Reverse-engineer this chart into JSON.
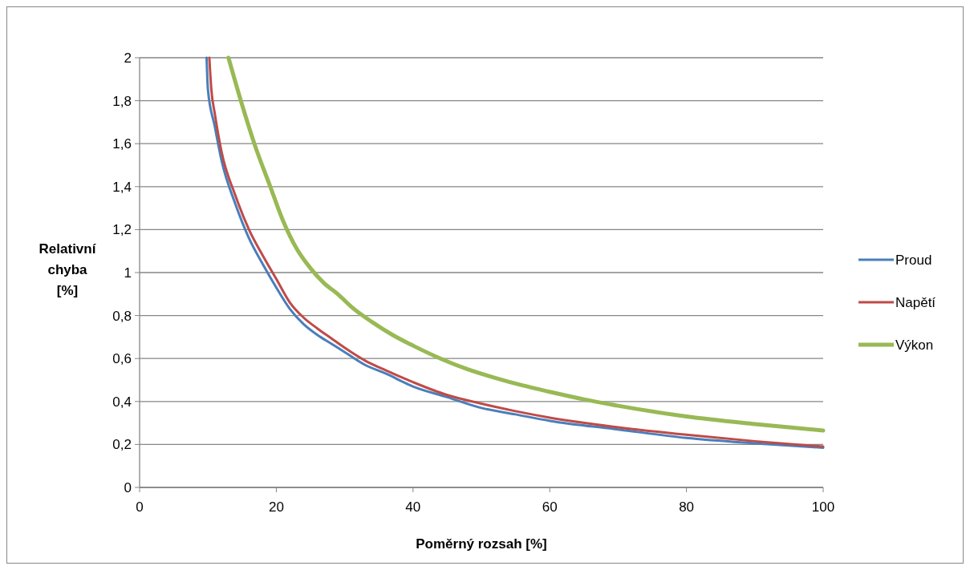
{
  "chart_data": {
    "type": "line",
    "xlabel": "Poměrný rozsah [%]",
    "ylabel": "Relativní chyba [%]",
    "xlim": [
      0,
      100
    ],
    "xticks": [
      0,
      20,
      40,
      60,
      80,
      100
    ],
    "ylim": [
      0,
      2
    ],
    "yticks": [
      0,
      {
        "value": 0.2,
        "label": "0,2"
      },
      {
        "value": 0.4,
        "label": "0,4"
      },
      {
        "value": 0.6,
        "label": "0,6"
      },
      {
        "value": 0.8,
        "label": "0,8"
      },
      1,
      {
        "value": 1.2,
        "label": "1,2"
      },
      {
        "value": 1.4,
        "label": "1,4"
      },
      {
        "value": 1.6,
        "label": "1,6"
      },
      {
        "value": 1.8,
        "label": "1,8"
      },
      2
    ],
    "grid": "y",
    "legend": "right",
    "marker": "none",
    "line_style": "solid",
    "series": [
      {
        "name": "Proud",
        "color": "#4a7ebb",
        "x": [
          9.8,
          10,
          11,
          12,
          14,
          16,
          18,
          20,
          22,
          24,
          26,
          28,
          30,
          33,
          36,
          40,
          45,
          50,
          55,
          60,
          70,
          80,
          90,
          100
        ],
        "values": [
          2.0,
          1.85,
          1.68,
          1.52,
          1.32,
          1.16,
          1.04,
          0.93,
          0.83,
          0.76,
          0.71,
          0.67,
          0.63,
          0.57,
          0.53,
          0.47,
          0.42,
          0.37,
          0.34,
          0.31,
          0.27,
          0.23,
          0.205,
          0.185
        ]
      },
      {
        "name": "Napětí",
        "color": "#be4b48",
        "x": [
          10.2,
          10.5,
          11,
          12,
          14,
          16,
          18,
          20,
          22,
          24,
          26,
          28,
          30,
          33,
          36,
          40,
          45,
          50,
          55,
          60,
          70,
          80,
          90,
          100
        ],
        "values": [
          2.0,
          1.85,
          1.74,
          1.56,
          1.36,
          1.2,
          1.08,
          0.97,
          0.86,
          0.79,
          0.74,
          0.695,
          0.65,
          0.59,
          0.545,
          0.49,
          0.43,
          0.39,
          0.355,
          0.325,
          0.28,
          0.245,
          0.215,
          0.19
        ]
      },
      {
        "name": "Výkon",
        "color": "#98b954",
        "x": [
          13,
          15,
          17,
          19,
          21,
          23,
          25,
          27,
          29,
          31,
          34,
          37,
          40,
          44,
          48,
          52,
          56,
          60,
          65,
          70,
          80,
          90,
          100
        ],
        "values": [
          2.0,
          1.78,
          1.58,
          1.41,
          1.24,
          1.11,
          1.02,
          0.95,
          0.9,
          0.84,
          0.77,
          0.71,
          0.66,
          0.6,
          0.55,
          0.51,
          0.475,
          0.445,
          0.41,
          0.38,
          0.33,
          0.295,
          0.265
        ]
      }
    ]
  }
}
